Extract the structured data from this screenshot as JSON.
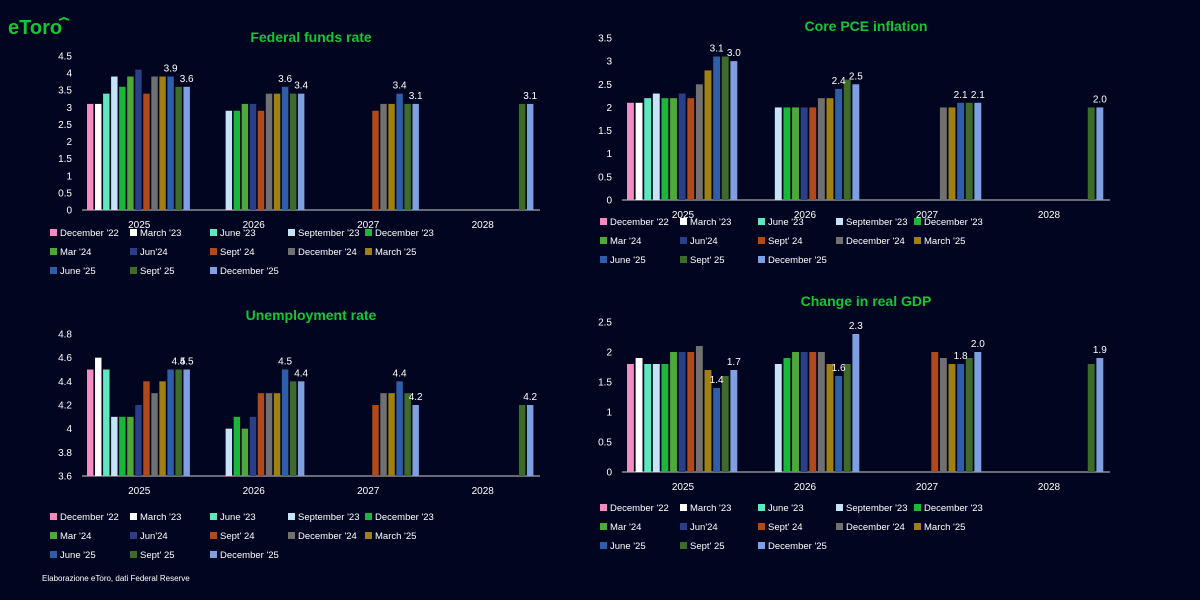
{
  "brand": {
    "name": "eToro",
    "color": "#13c636"
  },
  "footer": "Elaborazione eToro, dati Federal Reserve",
  "colors": {
    "background": "#02051f",
    "title": "#13c636",
    "axis": "#ffffff"
  },
  "series_palette": [
    {
      "name": "December '22",
      "color": "#f48cc2"
    },
    {
      "name": "March '23",
      "color": "#ffffff"
    },
    {
      "name": "June '23",
      "color": "#5ee8c0"
    },
    {
      "name": "September '23",
      "color": "#c6e3f7"
    },
    {
      "name": "December '23",
      "color": "#19b83a"
    },
    {
      "name": "Mar '24",
      "color": "#4fa83a"
    },
    {
      "name": "Jun'24",
      "color": "#2a3f85"
    },
    {
      "name": "Sept' 24",
      "color": "#b04a1a"
    },
    {
      "name": "December '24",
      "color": "#707070"
    },
    {
      "name": "March '25",
      "color": "#a08010"
    },
    {
      "name": "June '25",
      "color": "#2e5ea8"
    },
    {
      "name": "Sept' 25",
      "color": "#3d6b2a"
    },
    {
      "name": "December '25",
      "color": "#7fa0e0"
    }
  ],
  "chart_data": [
    {
      "type": "bar",
      "title": "Federal funds rate",
      "categories": [
        "2025",
        "2026",
        "2027",
        "2028"
      ],
      "ylim": [
        0,
        4.5
      ],
      "yticks": [
        "0",
        "0.5",
        "1",
        "1.5",
        "2",
        "2.5",
        "3",
        "3.5",
        "4",
        "4.5"
      ],
      "series": [
        {
          "name": "December '22",
          "values": [
            3.1,
            null,
            null,
            null
          ]
        },
        {
          "name": "March '23",
          "values": [
            3.1,
            null,
            null,
            null
          ]
        },
        {
          "name": "June '23",
          "values": [
            3.4,
            null,
            null,
            null
          ]
        },
        {
          "name": "September '23",
          "values": [
            3.9,
            2.9,
            null,
            null
          ]
        },
        {
          "name": "December '23",
          "values": [
            3.6,
            2.9,
            null,
            null
          ]
        },
        {
          "name": "Mar '24",
          "values": [
            3.9,
            3.1,
            null,
            null
          ]
        },
        {
          "name": "Jun'24",
          "values": [
            4.1,
            3.1,
            null,
            null
          ]
        },
        {
          "name": "Sept' 24",
          "values": [
            3.4,
            2.9,
            2.9,
            null
          ]
        },
        {
          "name": "December '24",
          "values": [
            3.9,
            3.4,
            3.1,
            null
          ]
        },
        {
          "name": "March '25",
          "values": [
            3.9,
            3.4,
            3.1,
            null
          ]
        },
        {
          "name": "June '25",
          "values": [
            3.9,
            3.6,
            3.4,
            null
          ]
        },
        {
          "name": "Sept' 25",
          "values": [
            3.6,
            3.4,
            3.1,
            3.1
          ]
        },
        {
          "name": "December '25",
          "values": [
            3.6,
            3.4,
            3.1,
            3.1
          ]
        }
      ],
      "data_labels": [
        {
          "series": "June '25",
          "category": "2025",
          "text": "3.9"
        },
        {
          "series": "December '25",
          "category": "2025",
          "text": "3.6"
        },
        {
          "series": "June '25",
          "category": "2026",
          "text": "3.6"
        },
        {
          "series": "December '25",
          "category": "2026",
          "text": "3.4"
        },
        {
          "series": "June '25",
          "category": "2027",
          "text": "3.4"
        },
        {
          "series": "December '25",
          "category": "2027",
          "text": "3.1"
        },
        {
          "series": "December '25",
          "category": "2028",
          "text": "3.1"
        }
      ]
    },
    {
      "type": "bar",
      "title": "Core PCE inflation",
      "categories": [
        "2025",
        "2026",
        "2027",
        "2028"
      ],
      "ylim": [
        0,
        3.5
      ],
      "yticks": [
        "0",
        "0.5",
        "1",
        "1.5",
        "2",
        "2.5",
        "3",
        "3.5"
      ],
      "series": [
        {
          "name": "December '22",
          "values": [
            2.1,
            null,
            null,
            null
          ]
        },
        {
          "name": "March '23",
          "values": [
            2.1,
            null,
            null,
            null
          ]
        },
        {
          "name": "June '23",
          "values": [
            2.2,
            null,
            null,
            null
          ]
        },
        {
          "name": "September '23",
          "values": [
            2.3,
            2.0,
            null,
            null
          ]
        },
        {
          "name": "December '23",
          "values": [
            2.2,
            2.0,
            null,
            null
          ]
        },
        {
          "name": "Mar '24",
          "values": [
            2.2,
            2.0,
            null,
            null
          ]
        },
        {
          "name": "Jun'24",
          "values": [
            2.3,
            2.0,
            null,
            null
          ]
        },
        {
          "name": "Sept' 24",
          "values": [
            2.2,
            2.0,
            null,
            null
          ]
        },
        {
          "name": "December '24",
          "values": [
            2.5,
            2.2,
            2.0,
            null
          ]
        },
        {
          "name": "March '25",
          "values": [
            2.8,
            2.2,
            2.0,
            null
          ]
        },
        {
          "name": "June '25",
          "values": [
            3.1,
            2.4,
            2.1,
            null
          ]
        },
        {
          "name": "Sept' 25",
          "values": [
            3.1,
            2.6,
            2.1,
            2.0
          ]
        },
        {
          "name": "December '25",
          "values": [
            3.0,
            2.5,
            2.1,
            2.0
          ]
        }
      ],
      "data_labels": [
        {
          "series": "June '25",
          "category": "2025",
          "text": "3.1"
        },
        {
          "series": "December '25",
          "category": "2025",
          "text": "3.0"
        },
        {
          "series": "June '25",
          "category": "2026",
          "text": "2.4"
        },
        {
          "series": "December '25",
          "category": "2026",
          "text": "2.5"
        },
        {
          "series": "June '25",
          "category": "2027",
          "text": "2.1"
        },
        {
          "series": "December '25",
          "category": "2027",
          "text": "2.1"
        },
        {
          "series": "December '25",
          "category": "2028",
          "text": "2.0"
        }
      ]
    },
    {
      "type": "bar",
      "title": "Unemployment rate",
      "categories": [
        "2025",
        "2026",
        "2027",
        "2028"
      ],
      "ylim": [
        3.6,
        4.8
      ],
      "yticks": [
        "3.6",
        "3.8",
        "4",
        "4.2",
        "4.4",
        "4.6",
        "4.8"
      ],
      "series": [
        {
          "name": "December '22",
          "values": [
            4.5,
            null,
            null,
            null
          ]
        },
        {
          "name": "March '23",
          "values": [
            4.6,
            null,
            null,
            null
          ]
        },
        {
          "name": "June '23",
          "values": [
            4.5,
            null,
            null,
            null
          ]
        },
        {
          "name": "September '23",
          "values": [
            4.1,
            4.0,
            null,
            null
          ]
        },
        {
          "name": "December '23",
          "values": [
            4.1,
            4.1,
            null,
            null
          ]
        },
        {
          "name": "Mar '24",
          "values": [
            4.1,
            4.0,
            null,
            null
          ]
        },
        {
          "name": "Jun'24",
          "values": [
            4.2,
            4.1,
            null,
            null
          ]
        },
        {
          "name": "Sept' 24",
          "values": [
            4.4,
            4.3,
            4.2,
            null
          ]
        },
        {
          "name": "December '24",
          "values": [
            4.3,
            4.3,
            4.3,
            null
          ]
        },
        {
          "name": "March '25",
          "values": [
            4.4,
            4.3,
            4.3,
            null
          ]
        },
        {
          "name": "June '25",
          "values": [
            4.5,
            4.5,
            4.4,
            null
          ]
        },
        {
          "name": "Sept' 25",
          "values": [
            4.5,
            4.4,
            4.3,
            4.2
          ]
        },
        {
          "name": "December '25",
          "values": [
            4.5,
            4.4,
            4.2,
            4.2
          ]
        }
      ],
      "data_labels": [
        {
          "series": "Sept' 25",
          "category": "2025",
          "text": "4.5"
        },
        {
          "series": "December '25",
          "category": "2025",
          "text": "4.5"
        },
        {
          "series": "June '25",
          "category": "2026",
          "text": "4.5"
        },
        {
          "series": "December '25",
          "category": "2026",
          "text": "4.4"
        },
        {
          "series": "June '25",
          "category": "2027",
          "text": "4.4"
        },
        {
          "series": "December '25",
          "category": "2027",
          "text": "4.2"
        },
        {
          "series": "December '25",
          "category": "2028",
          "text": "4.2"
        }
      ]
    },
    {
      "type": "bar",
      "title": "Change in real GDP",
      "categories": [
        "2025",
        "2026",
        "2027",
        "2028"
      ],
      "ylim": [
        0,
        2.5
      ],
      "yticks": [
        "0",
        "0.5",
        "1",
        "1.5",
        "2",
        "2.5"
      ],
      "series": [
        {
          "name": "December '22",
          "values": [
            1.8,
            null,
            null,
            null
          ]
        },
        {
          "name": "March '23",
          "values": [
            1.9,
            null,
            null,
            null
          ]
        },
        {
          "name": "June '23",
          "values": [
            1.8,
            null,
            null,
            null
          ]
        },
        {
          "name": "September '23",
          "values": [
            1.8,
            1.8,
            null,
            null
          ]
        },
        {
          "name": "December '23",
          "values": [
            1.8,
            1.9,
            null,
            null
          ]
        },
        {
          "name": "Mar '24",
          "values": [
            2.0,
            2.0,
            null,
            null
          ]
        },
        {
          "name": "Jun'24",
          "values": [
            2.0,
            2.0,
            null,
            null
          ]
        },
        {
          "name": "Sept' 24",
          "values": [
            2.0,
            2.0,
            2.0,
            null
          ]
        },
        {
          "name": "December '24",
          "values": [
            2.1,
            2.0,
            1.9,
            null
          ]
        },
        {
          "name": "March '25",
          "values": [
            1.7,
            1.8,
            1.8,
            null
          ]
        },
        {
          "name": "June '25",
          "values": [
            1.4,
            1.6,
            1.8,
            null
          ]
        },
        {
          "name": "Sept' 25",
          "values": [
            1.6,
            1.8,
            1.9,
            1.8
          ]
        },
        {
          "name": "December '25",
          "values": [
            1.7,
            2.3,
            2.0,
            1.9
          ]
        }
      ],
      "data_labels": [
        {
          "series": "June '25",
          "category": "2025",
          "text": "1.4"
        },
        {
          "series": "December '25",
          "category": "2025",
          "text": "1.7"
        },
        {
          "series": "June '25",
          "category": "2026",
          "text": "1.6"
        },
        {
          "series": "December '25",
          "category": "2026",
          "text": "2.3"
        },
        {
          "series": "June '25",
          "category": "2027",
          "text": "1.8"
        },
        {
          "series": "December '25",
          "category": "2027",
          "text": "2.0"
        },
        {
          "series": "December '25",
          "category": "2028",
          "text": "1.9"
        }
      ]
    }
  ]
}
